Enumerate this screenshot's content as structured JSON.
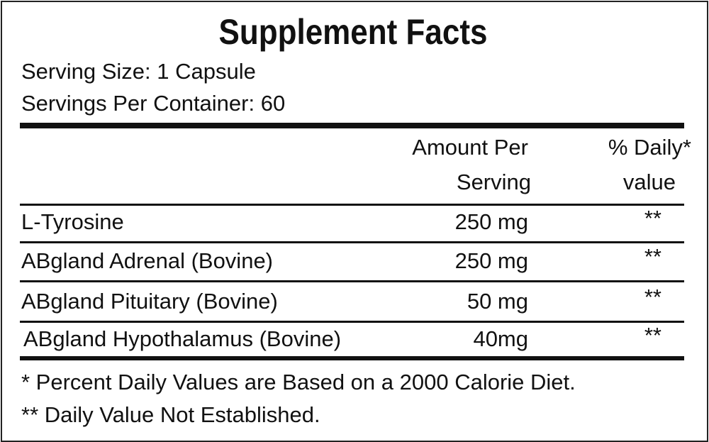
{
  "title": "Supplement Facts",
  "serving_size": "Serving Size: 1 Capsule",
  "servings_per_container": "Servings Per Container: 60",
  "header": {
    "amount_line1": "Amount Per",
    "amount_line2": "Serving",
    "dv_line1": "% Daily*",
    "dv_line2": "value"
  },
  "rows": [
    {
      "name": "L-Tyrosine",
      "amount": "250 mg",
      "dv": "**"
    },
    {
      "name": "ABgland Adrenal (Bovine)",
      "amount": "250 mg",
      "dv": "**"
    },
    {
      "name": "ABgland Pituitary (Bovine)",
      "amount": "50 mg",
      "dv": "**"
    },
    {
      "name": "ABgland Hypothalamus (Bovine)",
      "amount": "40mg",
      "dv": "**"
    }
  ],
  "footnotes": [
    "* Percent Daily Values are Based on a 2000 Calorie Diet.",
    "** Daily Value Not Established."
  ]
}
